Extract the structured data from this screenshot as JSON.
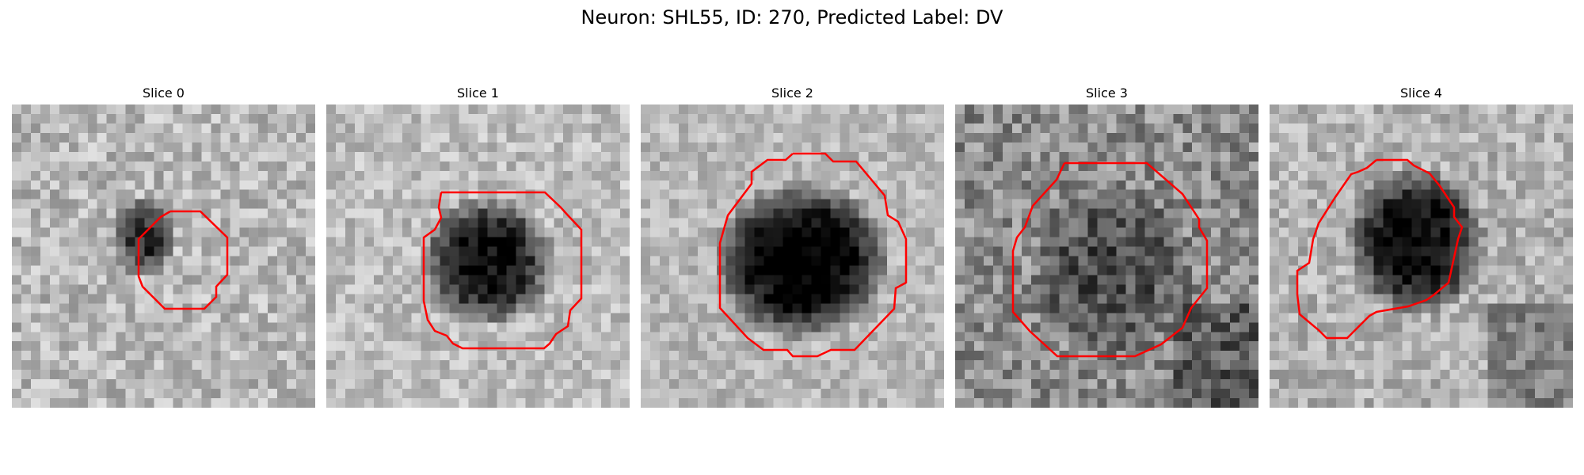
{
  "figure": {
    "title": "Neuron: SHL55, ID: 270, Predicted Label: DV"
  },
  "colors": {
    "background": "#ffffff",
    "outline": "#ff0000"
  },
  "panels": [
    {
      "title": "Slice 0",
      "outline_name": "cell-outline-slice-0"
    },
    {
      "title": "Slice 1",
      "outline_name": "cell-outline-slice-1"
    },
    {
      "title": "Slice 2",
      "outline_name": "cell-outline-slice-2"
    },
    {
      "title": "Slice 3",
      "outline_name": "cell-outline-slice-3"
    },
    {
      "title": "Slice 4",
      "outline_name": "cell-outline-slice-4"
    }
  ]
}
